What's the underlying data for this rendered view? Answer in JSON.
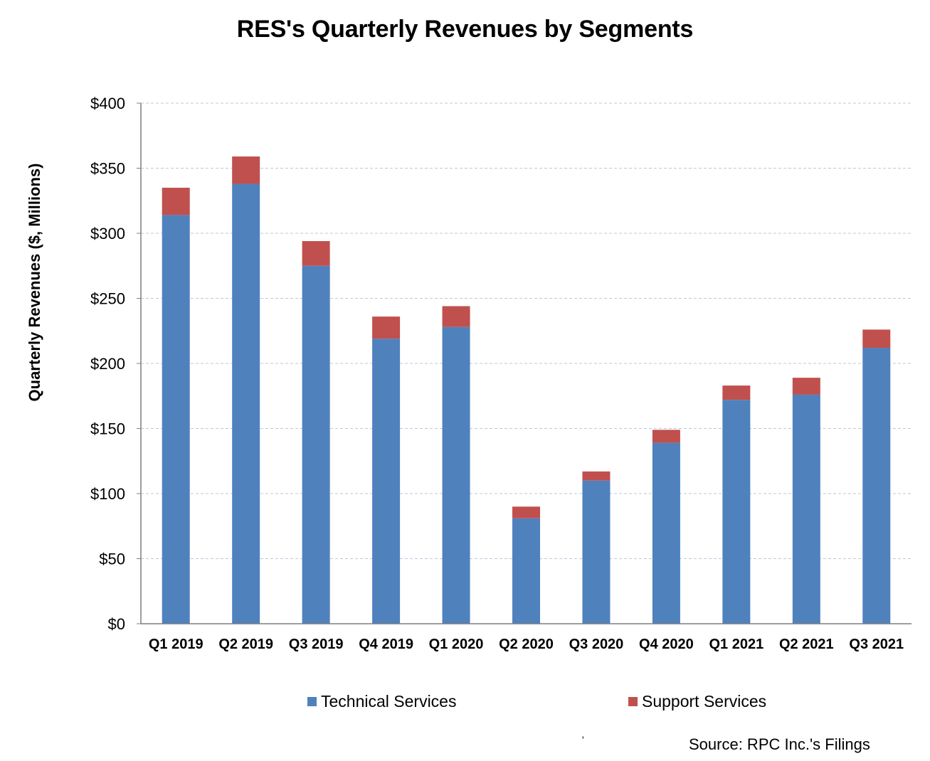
{
  "colors": {
    "technical": "#4f81bd",
    "support": "#c0504d",
    "grid": "#b9c9dd",
    "axis": "#7f7f7f"
  },
  "chart_data": {
    "type": "bar",
    "stacked": true,
    "title": "RES's Quarterly Revenues by Segments",
    "xlabel": "",
    "ylabel": "Quarterly Revenues ($, Millions)",
    "ylim": [
      0,
      400
    ],
    "yticks": [
      0,
      50,
      100,
      150,
      200,
      250,
      300,
      350,
      400
    ],
    "ytick_labels": [
      "$0",
      "$50",
      "$100",
      "$150",
      "$200",
      "$250",
      "$300",
      "$350",
      "$400"
    ],
    "grid": "horizontal dashed",
    "legend_position": "bottom",
    "categories": [
      "Q1 2019",
      "Q2 2019",
      "Q3 2019",
      "Q4 2019",
      "Q1 2020",
      "Q2 2020",
      "Q3 2020",
      "Q4 2020",
      "Q1 2021",
      "Q2 2021",
      "Q3 2021"
    ],
    "series": [
      {
        "name": "Technical Services",
        "color": "#4f81bd",
        "values": [
          314,
          338,
          275,
          219,
          228,
          81,
          110,
          139,
          172,
          176,
          212
        ]
      },
      {
        "name": "Support Services",
        "color": "#c0504d",
        "values": [
          21,
          21,
          19,
          17,
          16,
          9,
          7,
          10,
          11,
          13,
          14
        ]
      }
    ]
  },
  "footer": {
    "source": "Source: RPC Inc.'s Filings",
    "stray_mark": "'"
  }
}
